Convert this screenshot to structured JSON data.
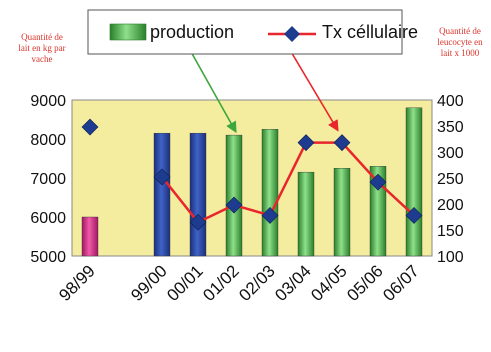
{
  "chart_data": {
    "type": "bar",
    "categories": [
      "98/99",
      "",
      "99/00",
      "00/01",
      "01/02",
      "02/03",
      "03/04",
      "04/05",
      "05/06",
      "06/07"
    ],
    "series": [
      {
        "name": "production",
        "type": "bar",
        "axis": "left",
        "values": [
          6000,
          null,
          8150,
          8150,
          8100,
          8250,
          7150,
          7250,
          7300,
          8800
        ],
        "bar_colors": [
          "#d61f86",
          null,
          "#2545a6",
          "#2545a6",
          "#3da63d",
          "#3da63d",
          "#3da63d",
          "#3da63d",
          "#3da63d",
          "#3da63d"
        ]
      },
      {
        "name": "Tx cellulaire",
        "type": "line",
        "axis": "right",
        "values": [
          348,
          null,
          252,
          165,
          198,
          178,
          318,
          318,
          242,
          178
        ],
        "line_color": "#e8262b",
        "marker_color": "#1e3c8f",
        "line_starts_at_index": 2
      }
    ],
    "y_left": {
      "label": "Quantité de lait en kg par vache",
      "range": [
        5000,
        9000
      ],
      "ticks": [
        "5000",
        "6000",
        "7000",
        "8000",
        "9000"
      ]
    },
    "y_right": {
      "label": "Quantité de leucocyte en lait x 1000",
      "range": [
        100,
        400
      ],
      "ticks": [
        "100",
        "150",
        "200",
        "250",
        "300",
        "350",
        "400"
      ]
    },
    "legend": {
      "placement": "top",
      "items": [
        {
          "label": "production",
          "marker": "bar",
          "color": "#3da63d"
        },
        {
          "label": "Tx céllulaire",
          "marker": "line-diamond",
          "color": "#e8262b",
          "marker_color": "#1e3c8f"
        }
      ]
    },
    "annotations": [
      {
        "kind": "arrow",
        "color": "#3da63d",
        "from": "legend-production",
        "to_category": "01/02"
      },
      {
        "kind": "arrow",
        "color": "#e8262b",
        "from": "legend-tx-cellulaire",
        "to_category": "04/05"
      }
    ],
    "plot_background": "#f4eda0",
    "grid": false
  }
}
